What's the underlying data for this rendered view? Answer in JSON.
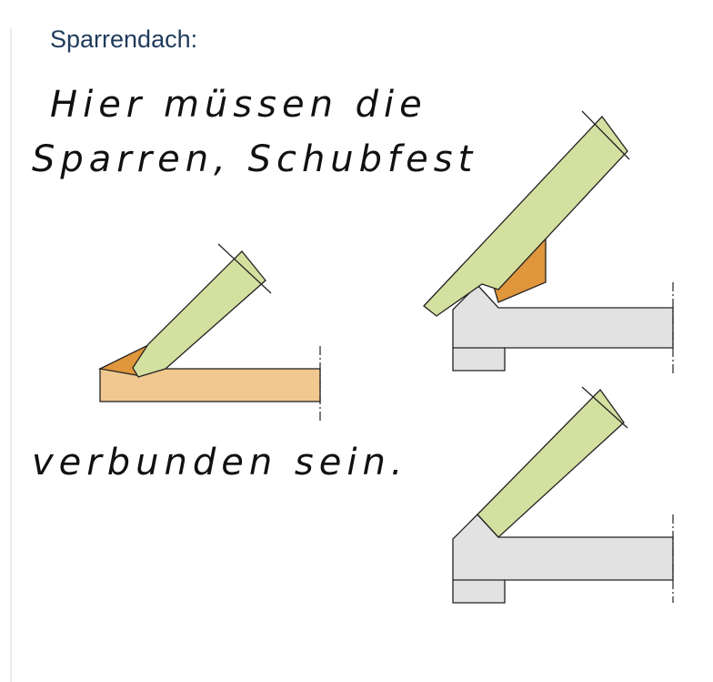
{
  "slide": {
    "title": "Sparrendach:",
    "notes": [
      "Hier müssen die",
      "Sparren, Schubfest",
      "verbunden sein."
    ]
  }
}
